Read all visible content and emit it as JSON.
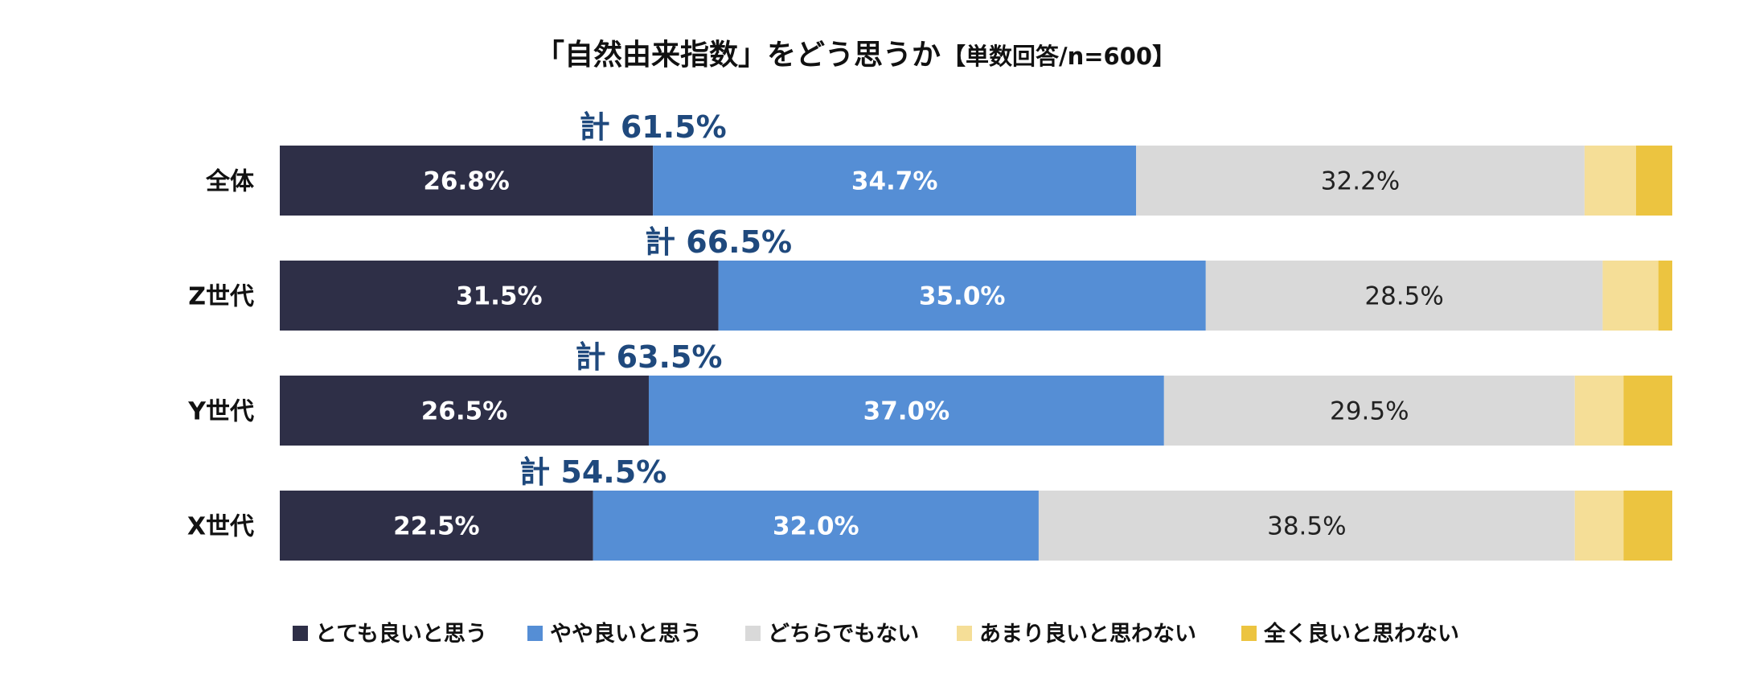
{
  "chart_data": {
    "type": "bar",
    "orientation": "horizontal",
    "stacked": true,
    "title": "「自然由来指数」をどう思うか",
    "subtitle": "【単数回答/n=600】",
    "categories": [
      "全体",
      "Z世代",
      "Y世代",
      "X世代"
    ],
    "series": [
      {
        "name": "とても良いと思う",
        "color": "#2e2f47",
        "values": [
          26.8,
          31.5,
          26.5,
          22.5
        ],
        "labels": [
          "26.8%",
          "31.5%",
          "26.5%",
          "22.5%"
        ]
      },
      {
        "name": "やや良いと思う",
        "color": "#558ed5",
        "values": [
          34.7,
          35.0,
          37.0,
          32.0
        ],
        "labels": [
          "34.7%",
          "35.0%",
          "37.0%",
          "32.0%"
        ]
      },
      {
        "name": "どちらでもない",
        "color": "#d9d9d9",
        "values": [
          32.2,
          28.5,
          29.5,
          38.5
        ],
        "labels": [
          "32.2%",
          "28.5%",
          "29.5%",
          "38.5%"
        ]
      },
      {
        "name": "あまり良いと思わない",
        "color": "#f5de97",
        "values": [
          3.7,
          4.0,
          3.5,
          3.5
        ],
        "labels": [
          "",
          "",
          "",
          ""
        ]
      },
      {
        "name": "全く良いと思わない",
        "color": "#ecc440",
        "values": [
          2.6,
          1.0,
          3.5,
          3.5
        ],
        "labels": [
          "",
          "",
          "",
          ""
        ]
      }
    ],
    "totals": [
      "計 61.5%",
      "計 66.5%",
      "計 63.5%",
      "計 54.5%"
    ],
    "xlim": [
      0,
      100
    ],
    "grid": false,
    "legend_position": "bottom"
  }
}
